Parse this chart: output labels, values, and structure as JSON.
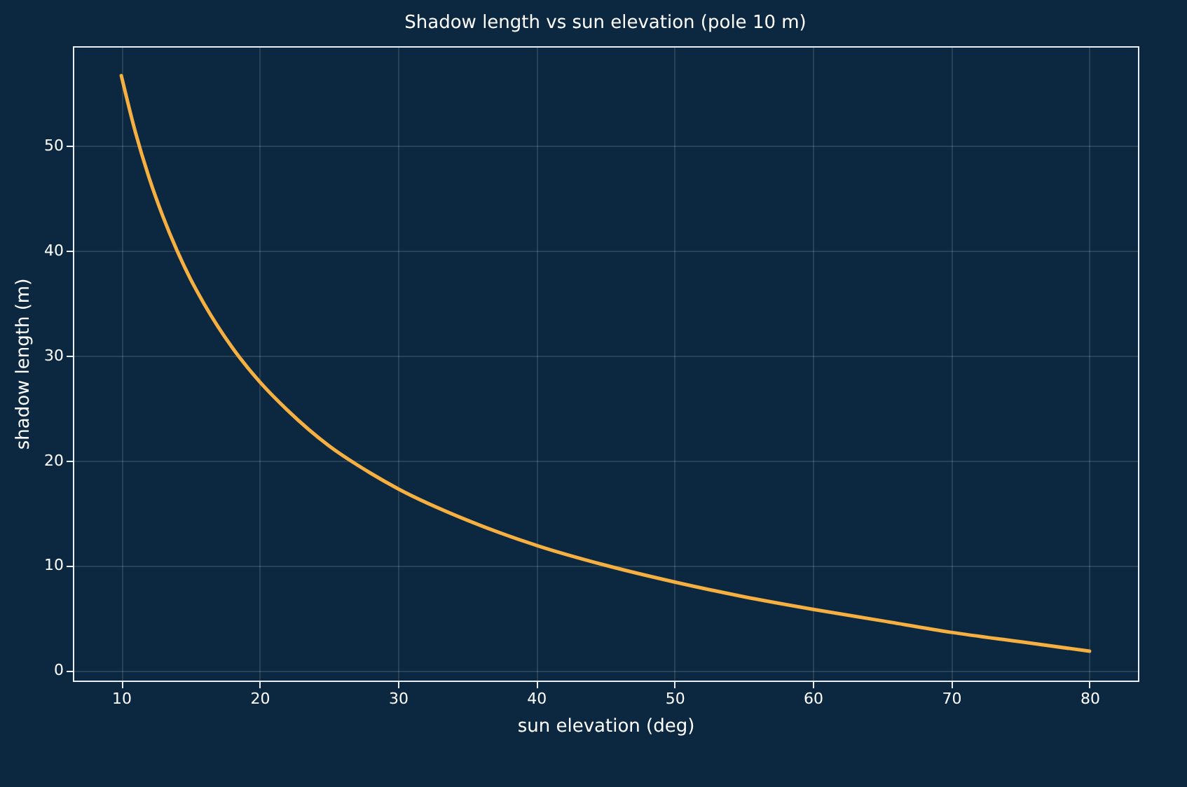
{
  "chart_data": {
    "type": "line",
    "title": "Shadow length vs sun elevation (pole 10 m)",
    "xlabel": "sun elevation (deg)",
    "ylabel": "shadow length (m)",
    "x": [
      10,
      11,
      12,
      13,
      14,
      15,
      16,
      18,
      20,
      22,
      25,
      28,
      30,
      35,
      40,
      45,
      50,
      55,
      60,
      65,
      70,
      75,
      80
    ],
    "series": [
      {
        "color": "#f5b041",
        "values": [
          56.7,
          51.4,
          47.0,
          43.3,
          40.1,
          37.3,
          34.9,
          30.8,
          27.5,
          24.8,
          21.4,
          18.8,
          17.3,
          14.3,
          11.9,
          10.0,
          8.4,
          7.0,
          5.8,
          4.7,
          3.6,
          2.7,
          1.8
        ]
      }
    ],
    "xlim": [
      6.5,
      83.5
    ],
    "ylim": [
      -1,
      59.5
    ],
    "xticks": [
      10,
      20,
      30,
      40,
      50,
      60,
      70,
      80
    ],
    "yticks": [
      0,
      10,
      20,
      30,
      40,
      50
    ],
    "grid": true,
    "marker": "none",
    "line_style": "solid"
  }
}
